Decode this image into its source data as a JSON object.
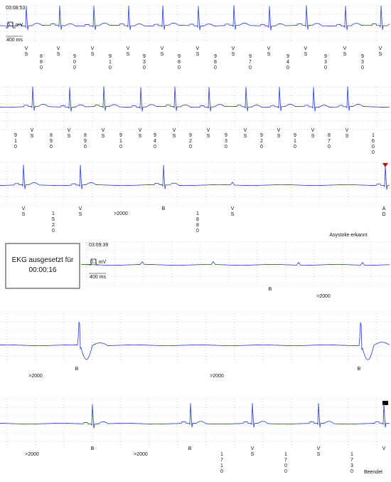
{
  "strips": [
    {
      "time": "03:08:53",
      "calibration": {
        "amplitude": "0.1 mV",
        "duration": "400 ms"
      },
      "annotations": [
        "VS",
        880,
        "VS",
        900,
        "VS",
        910,
        "VS",
        930,
        "VS",
        980,
        "VS",
        980,
        "VS",
        970,
        "VS",
        940,
        "VS",
        930,
        "VS",
        930,
        "VS"
      ]
    },
    {
      "annotations": [
        910,
        "VS",
        890,
        "VS",
        890,
        "VS",
        910,
        "VS",
        940,
        "VS",
        920,
        "VS",
        930,
        "VS",
        920,
        "VS",
        910,
        "VS",
        870,
        "VS",
        1600
      ]
    },
    {
      "annotations": [
        "VS",
        1520,
        "VS",
        ">2000",
        "B",
        1880,
        "VS",
        "AD"
      ],
      "event": "Asystolie erkannt"
    },
    {
      "pause_box": {
        "line1": "EKG ausgesetzt für",
        "line2": "00:00:16"
      },
      "time": "03:09:39",
      "calibration": {
        "amplitude": "0.1 mV",
        "duration": "400 ms"
      },
      "annotations": [
        "B",
        ">2000"
      ]
    },
    {
      "annotations": [
        ">2000",
        "B",
        ">2000",
        "B"
      ]
    },
    {
      "annotations": [
        ">2000",
        "B",
        ">2000",
        "B",
        1710,
        "VS",
        1700,
        "VS",
        1730,
        "V"
      ],
      "event": "Beendet"
    }
  ]
}
